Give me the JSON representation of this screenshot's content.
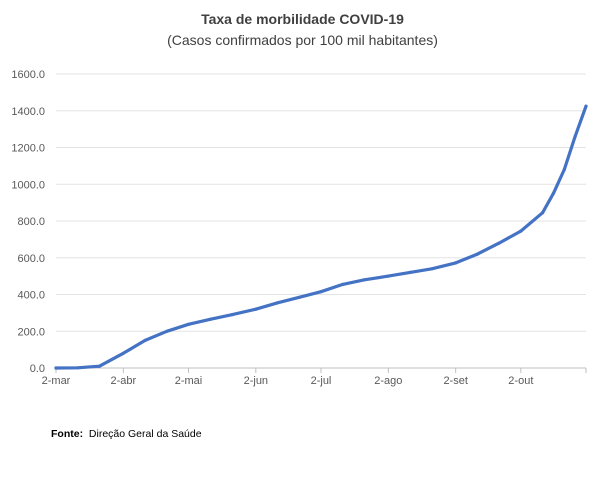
{
  "chart_data": {
    "type": "line",
    "title": "Taxa de morbilidade COVID-19",
    "subtitle": "(Casos confirmados por 100 mil habitantes)",
    "xlabel": "",
    "ylabel": "",
    "ylim": [
      0,
      1600
    ],
    "yticks": [
      "0.0",
      "200.0",
      "400.0",
      "600.0",
      "800.0",
      "1000.0",
      "1200.0",
      "1400.0",
      "1600.0"
    ],
    "xticks": [
      "2-mar",
      "2-abr",
      "2-mai",
      "2-jun",
      "2-jul",
      "2-ago",
      "2-set",
      "2-out"
    ],
    "grid": true,
    "line_color": "#4472c4",
    "series": [
      {
        "x": [
          "2-mar",
          "12-mar",
          "22-mar",
          "2-abr",
          "12-abr",
          "22-abr",
          "2-mai",
          "12-mai",
          "22-mai",
          "2-jun",
          "12-jun",
          "22-jun",
          "2-jul",
          "12-jul",
          "22-jul",
          "2-ago",
          "12-ago",
          "22-ago",
          "2-set",
          "12-set",
          "22-set",
          "2-out",
          "12-out",
          "17-out",
          "22-out",
          "27-out",
          "1-nov"
        ],
        "y": [
          0,
          1,
          10,
          80,
          150,
          200,
          238,
          265,
          290,
          320,
          355,
          385,
          415,
          455,
          480,
          500,
          520,
          540,
          572,
          620,
          680,
          745,
          845,
          950,
          1080,
          1260,
          1425
        ]
      }
    ]
  },
  "source": {
    "label": "Fonte:",
    "text": "Direção Geral da Saúde"
  }
}
